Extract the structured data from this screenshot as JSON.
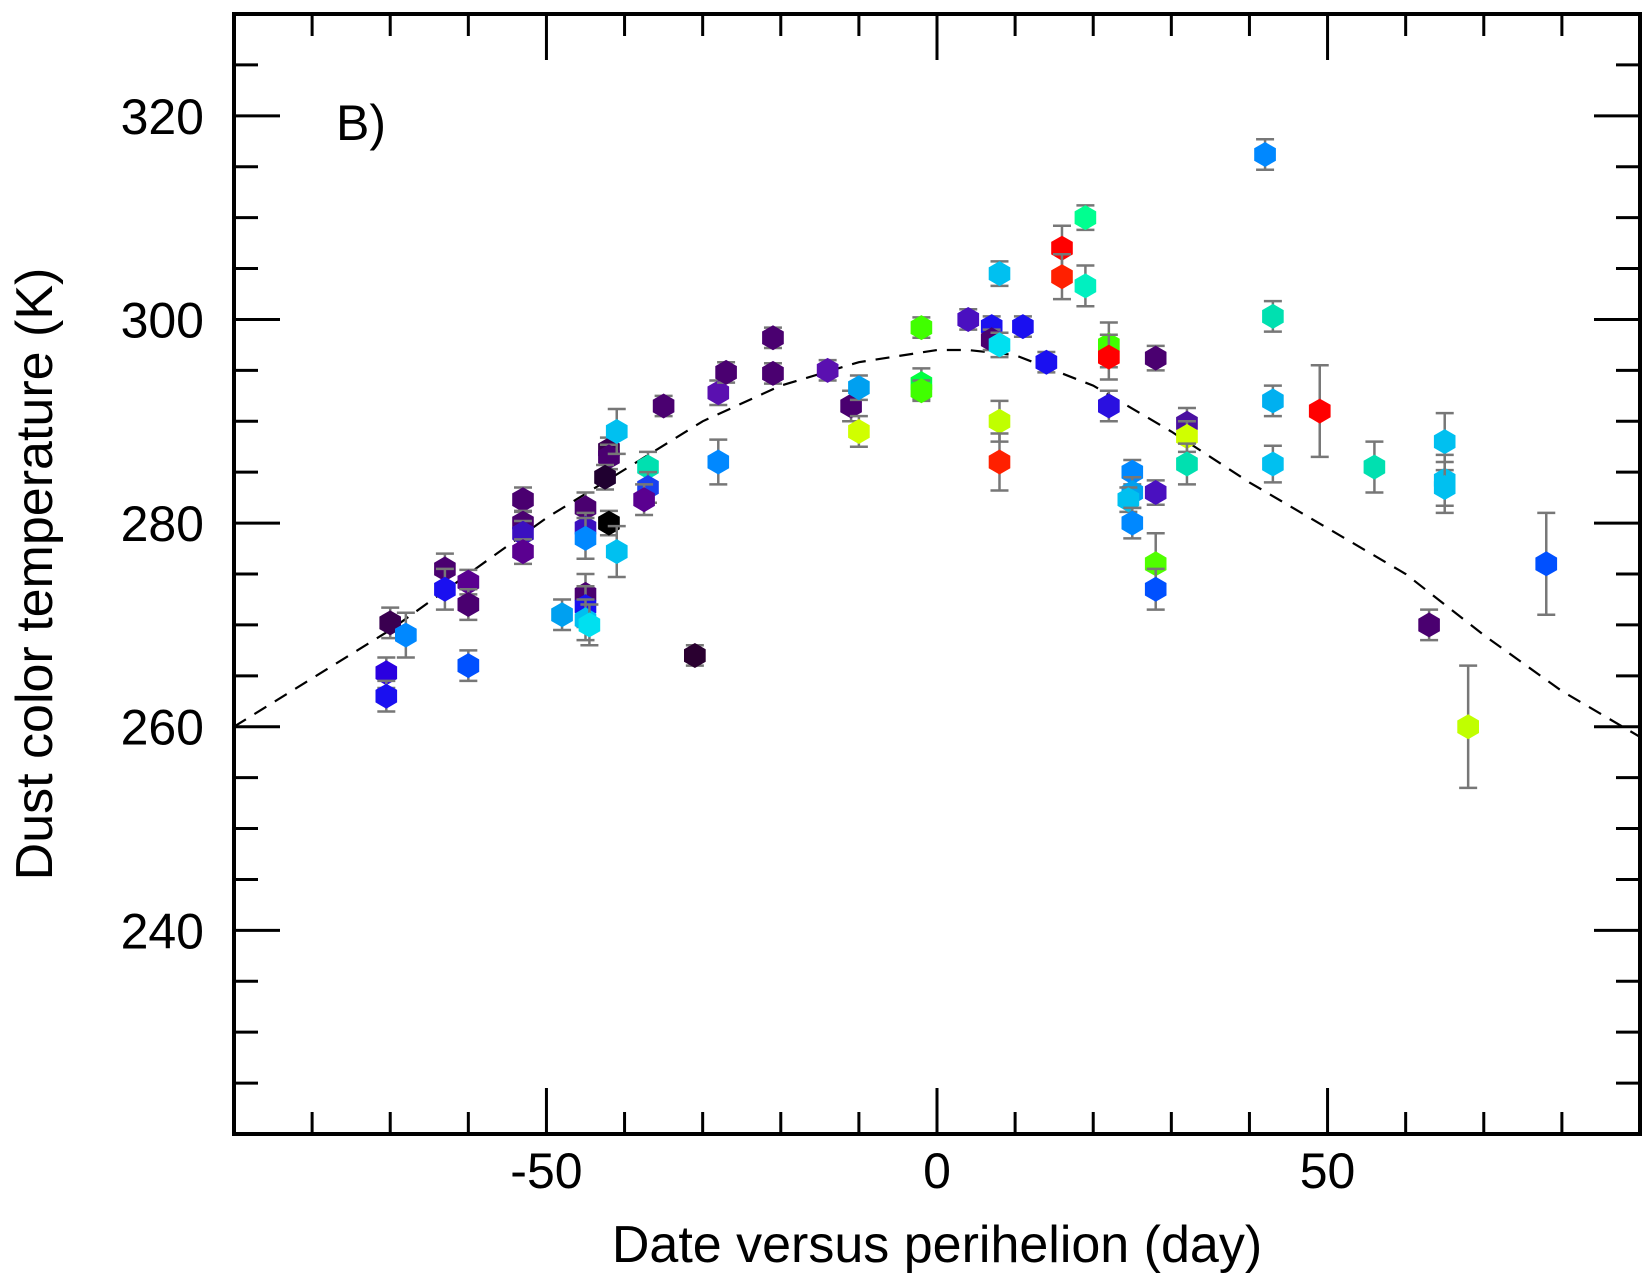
{
  "chart_data": {
    "type": "scatter",
    "title": "",
    "panel_label": "B)",
    "xlabel": "Date versus perihelion (day)",
    "ylabel": "Dust color temperature (K)",
    "xlim": [
      -90,
      90
    ],
    "ylim": [
      220,
      330
    ],
    "x_ticks": [
      -50,
      0,
      50
    ],
    "x_tick_labels": [
      "-50",
      "0",
      "50"
    ],
    "x_minor_step": 10,
    "y_ticks": [
      240,
      260,
      280,
      300,
      320
    ],
    "y_tick_labels": [
      "240",
      "260",
      "280",
      "300",
      "320"
    ],
    "y_minor_step": 5,
    "grid": false,
    "marker": "hexagon",
    "errorbar_color": "#777777",
    "fit_curve": {
      "style": "dashed",
      "color": "#000000",
      "x": [
        -90,
        -70,
        -50,
        -30,
        -20,
        -10,
        0,
        4,
        10,
        20,
        30,
        40,
        50,
        60,
        70,
        80,
        90
      ],
      "y": [
        260,
        269.5,
        280.5,
        290,
        293.5,
        295.8,
        297,
        297,
        296.5,
        293.5,
        289,
        284,
        279.5,
        275,
        269,
        263.5,
        259
      ]
    },
    "points": [
      {
        "x": -70,
        "y": 270.2,
        "err": 1.5,
        "color": "#3a0050"
      },
      {
        "x": -70.5,
        "y": 265.3,
        "err": 1.5,
        "color": "#2a00e0"
      },
      {
        "x": -70.5,
        "y": 263.0,
        "err": 1.5,
        "color": "#1a10f0"
      },
      {
        "x": -68,
        "y": 269.0,
        "err": 2.2,
        "color": "#0088ff"
      },
      {
        "x": -63,
        "y": 275.5,
        "err": 1.5,
        "color": "#4a0070"
      },
      {
        "x": -63,
        "y": 273.5,
        "err": 2.0,
        "color": "#1a10f0"
      },
      {
        "x": -60,
        "y": 274.2,
        "err": 1.2,
        "color": "#5a0090"
      },
      {
        "x": -60,
        "y": 272.0,
        "err": 1.5,
        "color": "#4a0070"
      },
      {
        "x": -60,
        "y": 266.0,
        "err": 1.5,
        "color": "#0050ff"
      },
      {
        "x": -53,
        "y": 282.3,
        "err": 1.2,
        "color": "#4a0070"
      },
      {
        "x": -53,
        "y": 280.0,
        "err": 1.2,
        "color": "#4a0070"
      },
      {
        "x": -53,
        "y": 279.0,
        "err": 1.2,
        "color": "#3a10c0"
      },
      {
        "x": -53,
        "y": 277.2,
        "err": 1.2,
        "color": "#5a0090"
      },
      {
        "x": -48,
        "y": 271.0,
        "err": 1.5,
        "color": "#00a0f0"
      },
      {
        "x": -45,
        "y": 281.5,
        "err": 1.5,
        "color": "#4a0070"
      },
      {
        "x": -45,
        "y": 279.5,
        "err": 1.5,
        "color": "#3a10c0"
      },
      {
        "x": -45,
        "y": 278.5,
        "err": 2.0,
        "color": "#0088ff"
      },
      {
        "x": -45,
        "y": 273.0,
        "err": 2.0,
        "color": "#4a0070"
      },
      {
        "x": -45,
        "y": 271.8,
        "err": 2.0,
        "color": "#1a10f0"
      },
      {
        "x": -45,
        "y": 270.5,
        "err": 2.0,
        "color": "#00c0f0"
      },
      {
        "x": -44.5,
        "y": 270.0,
        "err": 2.0,
        "color": "#00e0f0"
      },
      {
        "x": -42,
        "y": 287.2,
        "err": 1.2,
        "color": "#3a0050"
      },
      {
        "x": -42,
        "y": 286.5,
        "err": 1.2,
        "color": "#4a0070"
      },
      {
        "x": -42.5,
        "y": 284.5,
        "err": 1.2,
        "color": "#200030"
      },
      {
        "x": -42,
        "y": 280.0,
        "err": 1.2,
        "color": "#000000"
      },
      {
        "x": -41,
        "y": 289.0,
        "err": 2.2,
        "color": "#00c0f0"
      },
      {
        "x": -41,
        "y": 277.2,
        "err": 2.5,
        "color": "#00c0f0"
      },
      {
        "x": -37,
        "y": 285.5,
        "err": 1.5,
        "color": "#00e0b0"
      },
      {
        "x": -37,
        "y": 283.5,
        "err": 1.5,
        "color": "#1a40f0"
      },
      {
        "x": -37.5,
        "y": 282.3,
        "err": 1.5,
        "color": "#5a0090"
      },
      {
        "x": -35,
        "y": 291.5,
        "err": 1.0,
        "color": "#4a0070"
      },
      {
        "x": -31,
        "y": 267.0,
        "err": 1.0,
        "color": "#2a0030"
      },
      {
        "x": -28,
        "y": 292.8,
        "err": 1.2,
        "color": "#5a10b0"
      },
      {
        "x": -27,
        "y": 294.8,
        "err": 1.0,
        "color": "#4a0070"
      },
      {
        "x": -28,
        "y": 286.0,
        "err": 2.2,
        "color": "#0088ff"
      },
      {
        "x": -21,
        "y": 298.2,
        "err": 1.0,
        "color": "#4a0070"
      },
      {
        "x": -21,
        "y": 294.7,
        "err": 1.0,
        "color": "#4a0070"
      },
      {
        "x": -14,
        "y": 295.0,
        "err": 1.0,
        "color": "#5a10b0"
      },
      {
        "x": -11,
        "y": 291.5,
        "err": 1.5,
        "color": "#4a0070"
      },
      {
        "x": -10,
        "y": 293.3,
        "err": 1.2,
        "color": "#00a0f0"
      },
      {
        "x": -10,
        "y": 289.0,
        "err": 1.5,
        "color": "#d0ff00"
      },
      {
        "x": -2,
        "y": 299.2,
        "err": 1.0,
        "color": "#40ff00"
      },
      {
        "x": -2,
        "y": 293.7,
        "err": 1.5,
        "color": "#00ff40"
      },
      {
        "x": -2,
        "y": 293.0,
        "err": 1.0,
        "color": "#40ff00"
      },
      {
        "x": 4,
        "y": 300.0,
        "err": 1.0,
        "color": "#4a10c0"
      },
      {
        "x": 7,
        "y": 299.3,
        "err": 1.0,
        "color": "#1a10f0"
      },
      {
        "x": 7,
        "y": 298.0,
        "err": 1.0,
        "color": "#4a0070"
      },
      {
        "x": 8,
        "y": 297.5,
        "err": 1.2,
        "color": "#00e0f0"
      },
      {
        "x": 8,
        "y": 304.5,
        "err": 1.2,
        "color": "#00c0f0"
      },
      {
        "x": 8,
        "y": 290.0,
        "err": 2.0,
        "color": "#c0ff00"
      },
      {
        "x": 8,
        "y": 286.0,
        "err": 2.8,
        "color": "#ff2000"
      },
      {
        "x": 11,
        "y": 299.3,
        "err": 1.0,
        "color": "#1a10f0"
      },
      {
        "x": 14,
        "y": 295.8,
        "err": 1.0,
        "color": "#1a10f0"
      },
      {
        "x": 16,
        "y": 307.0,
        "err": 2.2,
        "color": "#ff0000"
      },
      {
        "x": 16,
        "y": 304.2,
        "err": 2.2,
        "color": "#ff2000"
      },
      {
        "x": 19,
        "y": 310.0,
        "err": 1.2,
        "color": "#00ff90"
      },
      {
        "x": 19,
        "y": 303.3,
        "err": 2.0,
        "color": "#00f0c0"
      },
      {
        "x": 22,
        "y": 297.5,
        "err": 2.2,
        "color": "#40ff00"
      },
      {
        "x": 22,
        "y": 296.3,
        "err": 2.2,
        "color": "#ff0000"
      },
      {
        "x": 22,
        "y": 291.5,
        "err": 1.5,
        "color": "#2a10e0"
      },
      {
        "x": 25,
        "y": 285.0,
        "err": 1.2,
        "color": "#0088ff"
      },
      {
        "x": 25,
        "y": 283.0,
        "err": 1.5,
        "color": "#00a0f0"
      },
      {
        "x": 24.5,
        "y": 282.3,
        "err": 1.2,
        "color": "#00c0f0"
      },
      {
        "x": 25,
        "y": 280.0,
        "err": 1.5,
        "color": "#0088ff"
      },
      {
        "x": 28,
        "y": 296.2,
        "err": 1.2,
        "color": "#4a0070"
      },
      {
        "x": 28,
        "y": 283.0,
        "err": 1.2,
        "color": "#4a10c0"
      },
      {
        "x": 28,
        "y": 276.0,
        "err": 3.0,
        "color": "#50ff00"
      },
      {
        "x": 28,
        "y": 273.5,
        "err": 2.0,
        "color": "#0050ff"
      },
      {
        "x": 32,
        "y": 289.8,
        "err": 1.5,
        "color": "#4a10a0"
      },
      {
        "x": 32,
        "y": 288.5,
        "err": 1.5,
        "color": "#d0ff00"
      },
      {
        "x": 32,
        "y": 285.8,
        "err": 2.0,
        "color": "#00e0b0"
      },
      {
        "x": 42,
        "y": 316.2,
        "err": 1.5,
        "color": "#0088ff"
      },
      {
        "x": 43,
        "y": 300.3,
        "err": 1.5,
        "color": "#00e0b0"
      },
      {
        "x": 43,
        "y": 292.0,
        "err": 1.5,
        "color": "#00b0f0"
      },
      {
        "x": 43,
        "y": 285.8,
        "err": 1.8,
        "color": "#00c0f0"
      },
      {
        "x": 49,
        "y": 291.0,
        "err": 4.5,
        "color": "#ff0000"
      },
      {
        "x": 56,
        "y": 285.5,
        "err": 2.5,
        "color": "#00e0b0"
      },
      {
        "x": 63,
        "y": 270.0,
        "err": 1.5,
        "color": "#4a0070"
      },
      {
        "x": 65,
        "y": 288.0,
        "err": 2.8,
        "color": "#00c0f0"
      },
      {
        "x": 65,
        "y": 284.2,
        "err": 2.5,
        "color": "#00c0f0"
      },
      {
        "x": 65,
        "y": 283.5,
        "err": 2.5,
        "color": "#00c0f0"
      },
      {
        "x": 68,
        "y": 260.0,
        "err": 6.0,
        "color": "#c0ff00"
      },
      {
        "x": 78,
        "y": 276.0,
        "err": 5.0,
        "color": "#0050ff"
      }
    ]
  }
}
